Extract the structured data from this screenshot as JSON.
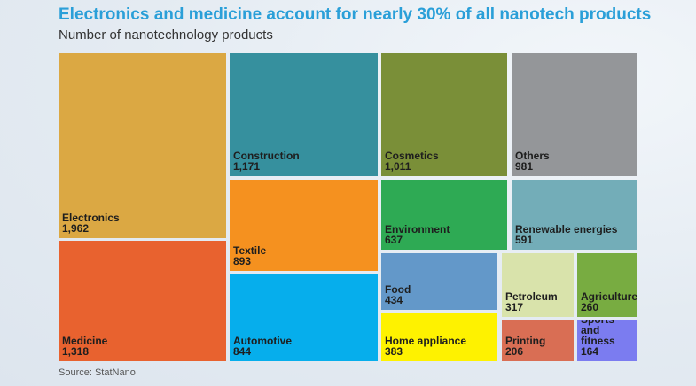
{
  "chart_data": {
    "type": "treemap",
    "title": "Electronics and medicine account for nearly 30% of all nanotech products",
    "subtitle": "Number of nanotechnology products",
    "source": "Source: StatNano",
    "items": [
      {
        "name": "Electronics",
        "value": "1,962",
        "color": "#dba843"
      },
      {
        "name": "Medicine",
        "value": "1,318",
        "color": "#e8622f"
      },
      {
        "name": "Construction",
        "value": "1,171",
        "color": "#36909e"
      },
      {
        "name": "Textile",
        "value": "893",
        "color": "#f5911f"
      },
      {
        "name": "Automotive",
        "value": "844",
        "color": "#06aeec"
      },
      {
        "name": "Cosmetics",
        "value": "1,011",
        "color": "#7a8f38"
      },
      {
        "name": "Environment",
        "value": "637",
        "color": "#2eaa54"
      },
      {
        "name": "Others",
        "value": "981",
        "color": "#949699"
      },
      {
        "name": "Renewable energies",
        "value": "591",
        "color": "#73adb8"
      },
      {
        "name": "Food",
        "value": "434",
        "color": "#6398c9"
      },
      {
        "name": "Home appliance",
        "value": "383",
        "color": "#fef200"
      },
      {
        "name": "Petroleum",
        "value": "317",
        "color": "#d9e3ab"
      },
      {
        "name": "Agriculture",
        "value": "260",
        "color": "#78ac41"
      },
      {
        "name": "Printing",
        "value": "206",
        "color": "#d96e54"
      },
      {
        "name": "Sports and fitness",
        "value": "164",
        "color": "#7b7cf0"
      }
    ]
  }
}
